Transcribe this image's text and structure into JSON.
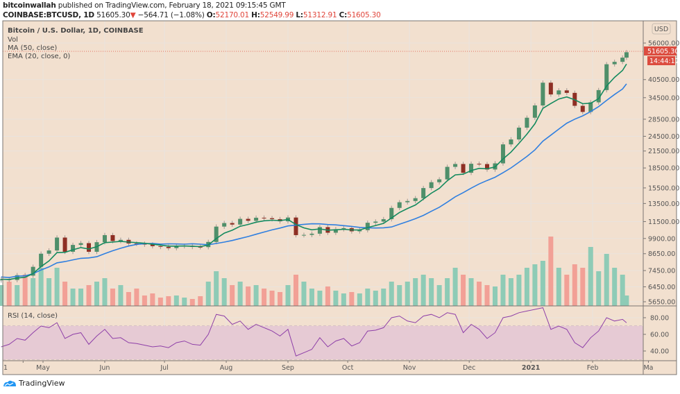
{
  "header": {
    "author": "bitcoinwallah",
    "published_text": "published on TradingView.com, February 18, 2021 09:15:45 GMT",
    "symbol": "COINBASE:BTCUSD, 1D",
    "last": "51605.30",
    "change": "−564.71 (−1.08%)",
    "change_direction": "down",
    "o_label": "O:",
    "o": "52170.01",
    "h_label": "H:",
    "h": "52549.99",
    "l_label": "L:",
    "l": "51312.91",
    "c_label": "C:",
    "c": "51605.30"
  },
  "legend": {
    "title": "Bitcoin / U.S. Dollar, 1D, COINBASE",
    "vol": "Vol",
    "ma": "MA (50, close)",
    "ema": "EMA (20, close, 0)",
    "rsi": "RSI (14, close)"
  },
  "price_axis": {
    "currency": "USD",
    "last_price_label": "51605.30",
    "countdown": "14:44:17",
    "ticks": [
      "56000.00",
      "40500.00",
      "34500.00",
      "28500.00",
      "24500.00",
      "21500.00",
      "18500.00",
      "15500.00",
      "13500.00",
      "11500.00",
      "9900.00",
      "8650.00",
      "7450.00",
      "6450.00",
      "5650.00"
    ]
  },
  "rsi_axis": {
    "ticks": [
      "80.00",
      "60.00",
      "40.00"
    ]
  },
  "time_axis": {
    "labels": [
      {
        "text": "1",
        "date": "2020-04-21"
      },
      {
        "text": "May",
        "date": "2020-05-01"
      },
      {
        "text": "Jun",
        "date": "2020-06-01"
      },
      {
        "text": "Jul",
        "date": "2020-07-01"
      },
      {
        "text": "Aug",
        "date": "2020-08-01"
      },
      {
        "text": "Sep",
        "date": "2020-09-01"
      },
      {
        "text": "Oct",
        "date": "2020-10-01"
      },
      {
        "text": "Nov",
        "date": "2020-11-01"
      },
      {
        "text": "Dec",
        "date": "2020-12-01"
      },
      {
        "text": "2021",
        "date": "2021-01-01",
        "bold": true
      },
      {
        "text": "Feb",
        "date": "2021-02-01"
      },
      {
        "text": "Ma",
        "date": "2021-03-01"
      }
    ]
  },
  "branding": {
    "name": "TradingView"
  },
  "colors": {
    "background": "#f2e0cf",
    "up_candle": "#4f8f6a",
    "down_candle": "#8e2f24",
    "up_volume": "#8ecbb6",
    "down_volume": "#f2a096",
    "ma50": "#2f7fe0",
    "ema20": "#138a5e",
    "rsi_line": "#8e3fa8",
    "rsi_band": "#e6cad4",
    "last_price": "#dc4c3f"
  },
  "chart_data": {
    "type": "candlestick",
    "scale": "log",
    "ylim": [
      5650,
      60000
    ],
    "grid": true,
    "dates": [
      "2020-04-10",
      "2020-04-14",
      "2020-04-18",
      "2020-04-22",
      "2020-04-26",
      "2020-04-30",
      "2020-05-04",
      "2020-05-08",
      "2020-05-12",
      "2020-05-16",
      "2020-05-20",
      "2020-05-24",
      "2020-05-28",
      "2020-06-01",
      "2020-06-05",
      "2020-06-09",
      "2020-06-13",
      "2020-06-17",
      "2020-06-21",
      "2020-06-25",
      "2020-06-29",
      "2020-07-03",
      "2020-07-07",
      "2020-07-11",
      "2020-07-15",
      "2020-07-19",
      "2020-07-23",
      "2020-07-27",
      "2020-07-31",
      "2020-08-04",
      "2020-08-08",
      "2020-08-12",
      "2020-08-16",
      "2020-08-20",
      "2020-08-24",
      "2020-08-28",
      "2020-09-01",
      "2020-09-05",
      "2020-09-09",
      "2020-09-13",
      "2020-09-17",
      "2020-09-21",
      "2020-09-25",
      "2020-09-29",
      "2020-10-03",
      "2020-10-07",
      "2020-10-11",
      "2020-10-15",
      "2020-10-19",
      "2020-10-23",
      "2020-10-27",
      "2020-10-31",
      "2020-11-04",
      "2020-11-08",
      "2020-11-12",
      "2020-11-16",
      "2020-11-20",
      "2020-11-24",
      "2020-11-28",
      "2020-12-02",
      "2020-12-06",
      "2020-12-10",
      "2020-12-14",
      "2020-12-18",
      "2020-12-22",
      "2020-12-26",
      "2020-12-30",
      "2021-01-03",
      "2021-01-07",
      "2021-01-11",
      "2021-01-15",
      "2021-01-19",
      "2021-01-23",
      "2021-01-27",
      "2021-01-31",
      "2021-02-04",
      "2021-02-08",
      "2021-02-12",
      "2021-02-16",
      "2021-02-18"
    ],
    "close": [
      6900,
      6850,
      7150,
      7120,
      7700,
      8650,
      8900,
      9980,
      8800,
      9350,
      9500,
      8800,
      9580,
      10200,
      9680,
      9780,
      9470,
      9450,
      9380,
      9250,
      9190,
      9090,
      9250,
      9280,
      9190,
      9170,
      9600,
      11000,
      11350,
      11200,
      11780,
      11580,
      11900,
      11850,
      11750,
      11530,
      11920,
      10200,
      10220,
      10330,
      10950,
      10420,
      10750,
      10850,
      10550,
      10660,
      11380,
      11500,
      11750,
      12980,
      13650,
      13800,
      14150,
      15480,
      16300,
      16720,
      18680,
      19160,
      17730,
      19200,
      19150,
      18250,
      19270,
      22800,
      23820,
      26440,
      28880,
      32200,
      39400,
      35500,
      36800,
      36000,
      32100,
      30400,
      33100,
      36900,
      46400,
      47400,
      49200,
      51605.3
    ],
    "volume": [
      30,
      35,
      30,
      45,
      40,
      55,
      40,
      55,
      35,
      25,
      25,
      30,
      35,
      40,
      25,
      30,
      20,
      25,
      15,
      18,
      12,
      14,
      15,
      12,
      10,
      14,
      35,
      50,
      40,
      30,
      35,
      28,
      30,
      25,
      22,
      20,
      30,
      45,
      35,
      25,
      22,
      28,
      22,
      18,
      20,
      18,
      25,
      22,
      25,
      35,
      30,
      35,
      40,
      45,
      40,
      30,
      40,
      55,
      45,
      40,
      35,
      30,
      28,
      45,
      40,
      45,
      55,
      60,
      65,
      100,
      55,
      45,
      60,
      55,
      85,
      50,
      75,
      55,
      45,
      15
    ],
    "rsi": [
      45,
      48,
      55,
      53,
      62,
      70,
      68,
      74,
      55,
      60,
      62,
      48,
      58,
      66,
      55,
      56,
      50,
      49,
      47,
      45,
      46,
      44,
      50,
      52,
      48,
      47,
      60,
      84,
      82,
      72,
      76,
      66,
      72,
      68,
      64,
      58,
      66,
      34,
      38,
      42,
      56,
      45,
      52,
      55,
      46,
      50,
      64,
      65,
      68,
      80,
      82,
      76,
      74,
      82,
      84,
      80,
      86,
      84,
      62,
      72,
      66,
      55,
      62,
      80,
      82,
      86,
      88,
      90,
      92,
      66,
      70,
      66,
      50,
      44,
      56,
      64,
      80,
      76,
      78,
      74
    ],
    "rsi_band": [
      30,
      70
    ],
    "indicators": [
      "MA (50, close)",
      "EMA (20, close, 0)"
    ]
  }
}
